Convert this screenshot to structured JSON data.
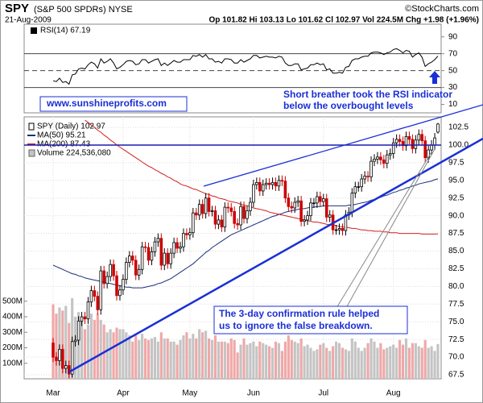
{
  "header": {
    "symbol": "SPY",
    "name": "(S&P 500 SPDRs) NYSE",
    "date": "21-Aug-2009",
    "quote": "Op 101.82 Hi 103.13 Lo 101.62 Cl 102.97 Vol 224.5M Chg +1.98 (+1.96%)",
    "source": "©StockCharts.com"
  },
  "watermark": "www.sunshineprofits.com",
  "chart_data": [
    {
      "type": "line",
      "title": "RSI(14) 67.19",
      "color": "#000000",
      "values": [
        38,
        37,
        41,
        36,
        37,
        34,
        45,
        46,
        52,
        53,
        52,
        57,
        60,
        58,
        53,
        64,
        59,
        61,
        64,
        59,
        52,
        54,
        57,
        61,
        62,
        61,
        57,
        58,
        63,
        63,
        59,
        61,
        63,
        64,
        56,
        59,
        56,
        59,
        62,
        60,
        60,
        63,
        63,
        63,
        68,
        67,
        69,
        66,
        69,
        64,
        64,
        60,
        61,
        59,
        64,
        64,
        63,
        59,
        59,
        63,
        60,
        62,
        64,
        68,
        68,
        65,
        66,
        67,
        66,
        66,
        65,
        67,
        66,
        59,
        56,
        56,
        58,
        58,
        51,
        52,
        53,
        57,
        57,
        59,
        57,
        58,
        51,
        52,
        47,
        47,
        48,
        47,
        54,
        55,
        62,
        64,
        64,
        66,
        67,
        67,
        71,
        72,
        72,
        71,
        69,
        71,
        72,
        75,
        76,
        74,
        71,
        74,
        73,
        66,
        69,
        71,
        66,
        55,
        58,
        60,
        63,
        67.19
      ],
      "ylim": [
        0,
        105
      ],
      "yticks": [
        10,
        30,
        50,
        70,
        90
      ],
      "hlines": [
        70,
        30
      ],
      "dashed_hlines": [
        50
      ],
      "annotations": [
        [
          "Short breather took the RSI indicator",
          "below the overbought levels"
        ]
      ]
    },
    {
      "type": "candlestick",
      "name": "SPY (Daily) 102.97",
      "up_color": "#000000",
      "down_color": "#cc0000",
      "grid": true,
      "categories": [
        "Mar",
        null,
        null,
        null,
        null,
        null,
        null,
        null,
        null,
        null,
        null,
        null,
        null,
        null,
        null,
        null,
        null,
        null,
        null,
        null,
        null,
        null,
        "Apr",
        null,
        null,
        null,
        null,
        null,
        null,
        null,
        null,
        null,
        null,
        null,
        null,
        null,
        null,
        null,
        null,
        null,
        null,
        null,
        null,
        "May",
        null,
        null,
        null,
        null,
        null,
        null,
        null,
        null,
        null,
        null,
        null,
        null,
        null,
        null,
        null,
        null,
        null,
        null,
        null,
        "Jun",
        null,
        null,
        null,
        null,
        null,
        null,
        null,
        null,
        null,
        null,
        null,
        null,
        null,
        null,
        null,
        null,
        null,
        null,
        null,
        null,
        null,
        "Jul",
        null,
        null,
        null,
        null,
        null,
        null,
        null,
        null,
        null,
        null,
        null,
        null,
        null,
        null,
        null,
        null,
        null,
        null,
        null,
        null,
        null,
        "Aug",
        null,
        null,
        null,
        null,
        null,
        null,
        null,
        null,
        null,
        null,
        null,
        null,
        null,
        null
      ],
      "open": [
        72.0,
        70.0,
        69.5,
        71.1,
        68.4,
        68.8,
        67.6,
        72.2,
        72.4,
        75.1,
        75.7,
        75.4,
        77.8,
        79.4,
        78.6,
        76.7,
        82.2,
        80.4,
        81.4,
        83.1,
        81.5,
        78.7,
        79.5,
        81.0,
        83.4,
        84.3,
        83.7,
        81.6,
        82.4,
        85.6,
        85.5,
        83.7,
        84.9,
        86.3,
        86.8,
        83.0,
        84.7,
        83.2,
        84.7,
        86.2,
        85.4,
        85.6,
        87.5,
        87.3,
        87.6,
        90.4,
        90.1,
        91.6,
        90.3,
        92.5,
        90.6,
        90.7,
        88.8,
        89.4,
        88.4,
        91.2,
        91.1,
        90.6,
        88.9,
        88.7,
        91.3,
        89.6,
        90.7,
        91.9,
        94.4,
        94.7,
        93.5,
        94.4,
        94.6,
        94.4,
        94.7,
        94.2,
        95.0,
        94.9,
        92.5,
        91.3,
        91.1,
        91.9,
        92.1,
        89.2,
        89.4,
        90.0,
        91.8,
        91.8,
        92.7,
        92.0,
        92.4,
        89.8,
        90.1,
        88.0,
        88.0,
        88.2,
        87.9,
        90.1,
        90.5,
        93.2,
        94.1,
        94.1,
        95.2,
        95.6,
        95.5,
        97.7,
        98.0,
        98.3,
        97.9,
        97.4,
        98.6,
        98.8,
        100.3,
        100.8,
        100.5,
        99.9,
        101.2,
        100.8,
        99.5,
        100.7,
        101.5,
        100.6,
        98.2,
        99.3,
        100.0,
        101.82
      ],
      "high": [
        72.7,
        70.7,
        71.8,
        71.8,
        69.5,
        69.5,
        72.9,
        73.1,
        75.8,
        76.4,
        76.4,
        78.5,
        80.1,
        80.1,
        79.3,
        82.9,
        82.9,
        82.1,
        83.8,
        83.8,
        82.2,
        80.2,
        81.7,
        84.1,
        85.0,
        85.0,
        84.4,
        83.1,
        86.3,
        86.3,
        86.2,
        85.6,
        87.0,
        87.5,
        87.5,
        85.4,
        85.4,
        85.4,
        86.9,
        86.9,
        86.3,
        88.2,
        88.2,
        88.3,
        91.1,
        91.1,
        92.3,
        92.3,
        93.2,
        93.2,
        91.4,
        91.4,
        90.1,
        90.1,
        91.9,
        91.9,
        91.8,
        91.3,
        89.6,
        92.0,
        92.0,
        91.4,
        92.6,
        95.1,
        95.4,
        95.4,
        95.1,
        95.3,
        95.3,
        95.4,
        95.4,
        95.7,
        95.7,
        95.6,
        93.2,
        92.0,
        92.6,
        92.8,
        92.8,
        90.1,
        90.7,
        92.5,
        92.5,
        93.4,
        93.4,
        93.1,
        93.1,
        90.8,
        90.8,
        88.7,
        88.9,
        88.9,
        90.8,
        91.2,
        93.9,
        94.8,
        94.8,
        95.9,
        96.3,
        96.3,
        98.4,
        98.7,
        99.0,
        99.0,
        98.6,
        99.3,
        99.5,
        101.0,
        101.5,
        101.5,
        101.2,
        101.9,
        101.9,
        101.5,
        101.4,
        102.2,
        102.2,
        101.3,
        100.0,
        100.7,
        101.7,
        103.13
      ],
      "low": [
        69.3,
        68.8,
        68.8,
        67.7,
        67.7,
        67.0,
        67.1,
        71.5,
        71.7,
        74.4,
        74.7,
        74.7,
        77.1,
        77.9,
        76.0,
        76.0,
        79.7,
        79.7,
        80.7,
        80.8,
        78.0,
        78.0,
        78.8,
        80.3,
        82.7,
        83.0,
        80.9,
        80.9,
        81.7,
        84.8,
        83.0,
        83.0,
        84.2,
        85.6,
        82.3,
        82.3,
        82.5,
        82.5,
        84.0,
        84.7,
        84.7,
        84.9,
        86.6,
        86.6,
        86.9,
        89.4,
        89.4,
        89.6,
        89.6,
        89.9,
        89.9,
        88.1,
        88.1,
        87.7,
        87.7,
        90.4,
        89.9,
        88.2,
        88.0,
        88.0,
        88.9,
        88.9,
        90.0,
        91.2,
        93.7,
        92.8,
        92.8,
        93.7,
        93.7,
        93.7,
        93.5,
        93.5,
        94.2,
        91.8,
        90.6,
        90.4,
        90.4,
        91.2,
        88.5,
        88.5,
        88.7,
        89.3,
        91.1,
        91.1,
        91.3,
        91.3,
        89.1,
        89.1,
        87.3,
        87.3,
        87.3,
        87.2,
        87.2,
        89.4,
        89.8,
        92.5,
        93.4,
        93.4,
        94.5,
        94.8,
        94.8,
        97.0,
        97.3,
        97.2,
        96.7,
        96.7,
        97.9,
        98.1,
        99.6,
        99.8,
        99.2,
        99.2,
        100.1,
        98.8,
        98.8,
        100.0,
        99.9,
        97.5,
        97.5,
        98.6,
        99.3,
        101.62
      ],
      "close": [
        70.0,
        69.5,
        71.1,
        68.4,
        68.8,
        67.6,
        72.2,
        72.4,
        75.1,
        75.7,
        75.4,
        77.8,
        79.4,
        78.6,
        76.7,
        82.2,
        80.4,
        81.4,
        83.1,
        81.5,
        78.7,
        79.5,
        81.0,
        83.4,
        84.3,
        83.7,
        81.6,
        82.4,
        85.6,
        85.5,
        83.7,
        84.9,
        86.3,
        86.8,
        83.0,
        84.7,
        83.2,
        84.7,
        86.2,
        85.4,
        85.6,
        87.5,
        87.3,
        87.6,
        90.4,
        90.1,
        91.6,
        90.3,
        92.5,
        90.6,
        90.7,
        88.8,
        89.4,
        88.4,
        91.2,
        91.1,
        90.6,
        88.9,
        88.7,
        91.3,
        89.6,
        90.7,
        91.9,
        94.4,
        94.7,
        93.5,
        94.4,
        94.6,
        94.4,
        94.7,
        94.2,
        95.0,
        94.9,
        92.5,
        91.3,
        91.1,
        91.9,
        92.1,
        89.2,
        89.4,
        90.0,
        91.8,
        91.8,
        92.7,
        92.0,
        92.4,
        89.8,
        90.1,
        88.0,
        88.0,
        88.2,
        87.9,
        90.1,
        90.5,
        93.2,
        94.1,
        94.1,
        95.2,
        95.6,
        95.5,
        97.7,
        98.0,
        98.3,
        97.9,
        97.4,
        98.6,
        98.8,
        100.3,
        100.8,
        100.5,
        99.9,
        101.2,
        100.8,
        99.5,
        100.7,
        101.5,
        100.6,
        98.2,
        99.3,
        100.0,
        101.0,
        102.97
      ],
      "series": [
        {
          "name": "MA(50) 95.21",
          "color": "#1c2f7a",
          "values": [
            83.0,
            82.8,
            82.6,
            82.4,
            82.2,
            82.0,
            81.8,
            81.7,
            81.5,
            81.4,
            81.2,
            81.1,
            81.0,
            80.9,
            80.8,
            80.7,
            80.6,
            80.5,
            80.4,
            80.3,
            80.2,
            80.1,
            80.0,
            79.9,
            79.9,
            79.8,
            79.8,
            79.8,
            79.8,
            79.9,
            80.0,
            80.1,
            80.2,
            80.4,
            80.5,
            80.7,
            80.9,
            81.1,
            81.4,
            81.7,
            82.0,
            82.3,
            82.6,
            82.9,
            83.2,
            83.6,
            84.0,
            84.4,
            84.8,
            85.1,
            85.5,
            85.8,
            86.1,
            86.4,
            86.7,
            87.0,
            87.3,
            87.5,
            87.7,
            87.9,
            88.1,
            88.3,
            88.5,
            88.7,
            88.9,
            89.1,
            89.3,
            89.5,
            89.7,
            89.9,
            90.0,
            90.2,
            90.3,
            90.5,
            90.6,
            90.7,
            90.8,
            90.9,
            91.0,
            91.0,
            91.1,
            91.2,
            91.2,
            91.3,
            91.3,
            91.4,
            91.4,
            91.4,
            91.4,
            91.4,
            91.4,
            91.4,
            91.4,
            91.5,
            91.5,
            91.6,
            91.7,
            91.8,
            91.9,
            92.0,
            92.2,
            92.3,
            92.5,
            92.6,
            92.8,
            92.9,
            93.1,
            93.3,
            93.4,
            93.6,
            93.7,
            93.9,
            94.0,
            94.2,
            94.3,
            94.5,
            94.6,
            94.7,
            94.8,
            94.9,
            95.1,
            95.21
          ]
        },
        {
          "name": "MA(200) 87.43",
          "color": "#d42020",
          "values": [
            null,
            null,
            null,
            null,
            null,
            null,
            null,
            null,
            null,
            null,
            103.5,
            103.2,
            102.8,
            102.5,
            102.1,
            101.8,
            101.4,
            101.1,
            100.7,
            100.4,
            100.0,
            99.7,
            99.4,
            99.1,
            98.8,
            98.5,
            98.2,
            97.9,
            97.6,
            97.3,
            97.0,
            96.8,
            96.5,
            96.3,
            96.0,
            95.8,
            95.5,
            95.3,
            95.0,
            94.8,
            94.5,
            94.3,
            94.2,
            94.0,
            93.8,
            93.7,
            93.5,
            93.3,
            93.1,
            93.0,
            92.8,
            92.7,
            92.5,
            92.4,
            92.3,
            92.1,
            92.0,
            91.9,
            91.8,
            91.6,
            91.5,
            91.4,
            91.3,
            91.1,
            91.0,
            90.9,
            90.8,
            90.7,
            90.5,
            90.4,
            90.3,
            90.2,
            90.1,
            90.0,
            89.9,
            89.8,
            89.7,
            89.6,
            89.5,
            89.4,
            89.3,
            89.2,
            89.1,
            89.1,
            89.0,
            88.9,
            88.8,
            88.7,
            88.7,
            88.6,
            88.5,
            88.4,
            88.4,
            88.3,
            88.2,
            88.2,
            88.1,
            88.0,
            88.0,
            87.9,
            87.9,
            87.8,
            87.8,
            87.8,
            87.7,
            87.7,
            87.6,
            87.6,
            87.6,
            87.5,
            87.5,
            87.5,
            87.5,
            87.5,
            87.5,
            87.5,
            87.4,
            87.4,
            87.4,
            87.4,
            87.4,
            87.43
          ]
        },
        {
          "name": "Volume 224,536,080",
          "type": "bar",
          "axis": "y2",
          "up_color": "#c4c4c4",
          "down_color": "#f0a8a8",
          "values": [
            480,
            420,
            460,
            440,
            470,
            360,
            520,
            400,
            430,
            380,
            320,
            350,
            420,
            380,
            420,
            380,
            350,
            300,
            320,
            300,
            330,
            320,
            320,
            300,
            280,
            240,
            280,
            250,
            290,
            260,
            250,
            260,
            270,
            240,
            300,
            260,
            260,
            240,
            240,
            220,
            250,
            280,
            300,
            260,
            290,
            260,
            320,
            300,
            310,
            260,
            250,
            280,
            240,
            240,
            240,
            230,
            260,
            250,
            170,
            220,
            260,
            220,
            230,
            240,
            210,
            240,
            230,
            220,
            210,
            200,
            240,
            230,
            180,
            240,
            280,
            250,
            240,
            230,
            260,
            210,
            220,
            200,
            180,
            190,
            220,
            230,
            200,
            180,
            210,
            240,
            230,
            200,
            190,
            180,
            260,
            240,
            200,
            180,
            200,
            230,
            260,
            240,
            200,
            230,
            190,
            200,
            210,
            220,
            200,
            250,
            220,
            260,
            200,
            230,
            230,
            210,
            200,
            250,
            200,
            210,
            180,
            224.53608
          ]
        }
      ],
      "ylim": [
        66.93,
        103.98
      ],
      "yticks": [
        67.5,
        {
          "value": 70,
          "label": "70.0"
        },
        72.5,
        {
          "value": 75,
          "label": "75.0"
        },
        77.5,
        {
          "value": 80,
          "label": "80.0"
        },
        82.5,
        {
          "value": 85,
          "label": "85.0"
        },
        87.5,
        {
          "value": 90,
          "label": "90.0"
        },
        92.5,
        {
          "value": 95,
          "label": "95.0"
        },
        97.5,
        {
          "value": 100,
          "label": "100.0"
        },
        102.5
      ],
      "y2lim": [
        0,
        1688
      ],
      "y2ticks": [
        {
          "value": 100,
          "label": "100M"
        },
        {
          "value": 200,
          "label": "200M"
        },
        {
          "value": 300,
          "label": "300M"
        },
        {
          "value": 400,
          "label": "400M"
        },
        {
          "value": 500,
          "label": "500M"
        }
      ],
      "annotations": [
        [
          "The 3-day confirmation rule helped",
          "us to ignore the false breakdown."
        ]
      ]
    }
  ]
}
